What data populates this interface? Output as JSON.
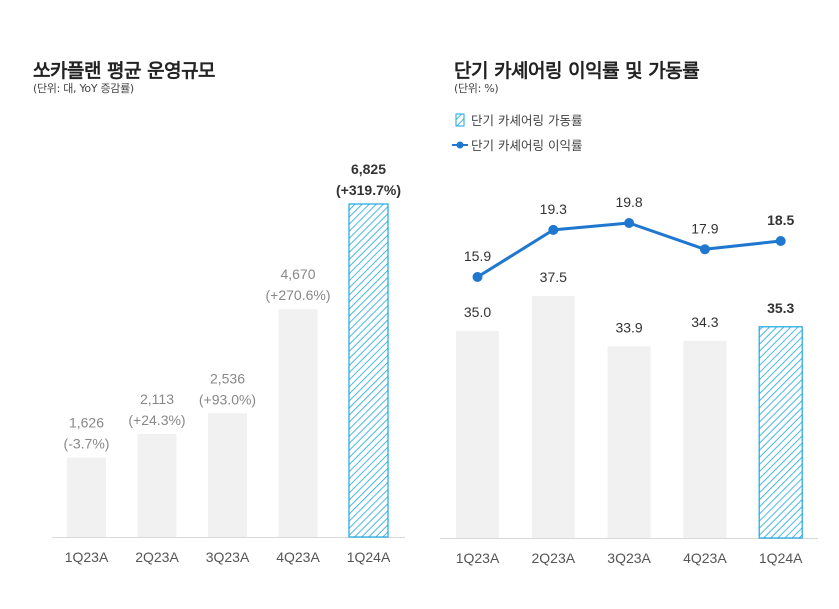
{
  "colors": {
    "bar": "#f1f1f1",
    "highlight": "#1aa7e0",
    "line": "#1f77d0",
    "axis": "#d9d9d9"
  },
  "left": {
    "title": "쏘카플랜 평균 운영규모",
    "unit": "(단위: 대, YoY 증감률)"
  },
  "right": {
    "title": "단기 카셰어링 이익률 및 가동률",
    "unit": "(단위: %)",
    "legend": [
      {
        "label": "단기 카셰어링 가동률",
        "icon": "hatched-bar-icon"
      },
      {
        "label": "단기 카셰어링 이익률",
        "icon": "line-marker-icon"
      }
    ]
  },
  "chart_data": [
    {
      "type": "bar",
      "title": "쏘카플랜 평균 운영규모",
      "categories": [
        "1Q23A",
        "2Q23A",
        "3Q23A",
        "4Q23A",
        "1Q24A"
      ],
      "values": [
        1626,
        2113,
        2536,
        4670,
        6825
      ],
      "value_labels": [
        "1,626",
        "2,113",
        "2,536",
        "4,670",
        "6,825"
      ],
      "yoy_labels": [
        "(-3.7%)",
        "(+24.3%)",
        "(+93.0%)",
        "(+270.6%)",
        "(+319.7%)"
      ],
      "yoy": [
        -3.7,
        24.3,
        93.0,
        270.6,
        319.7
      ],
      "highlight_index": 4,
      "ylim": [
        0,
        7200
      ],
      "grid": false
    },
    {
      "type": "bar+line",
      "title": "단기 카셰어링 이익률 및 가동률",
      "categories": [
        "1Q23A",
        "2Q23A",
        "3Q23A",
        "4Q23A",
        "1Q24A"
      ],
      "series": [
        {
          "name": "단기 카셰어링 가동률",
          "type": "bar",
          "values": [
            35.0,
            37.5,
            33.9,
            34.3,
            35.3
          ],
          "labels": [
            "35.0",
            "37.5",
            "33.9",
            "34.3",
            "35.3"
          ]
        },
        {
          "name": "단기 카셰어링 이익률",
          "type": "line",
          "values": [
            15.9,
            19.3,
            19.8,
            17.9,
            18.5
          ],
          "labels": [
            "15.9",
            "19.3",
            "19.8",
            "17.9",
            "18.5"
          ]
        }
      ],
      "highlight_index": 4,
      "legend_position": "top-left",
      "grid": false
    }
  ]
}
